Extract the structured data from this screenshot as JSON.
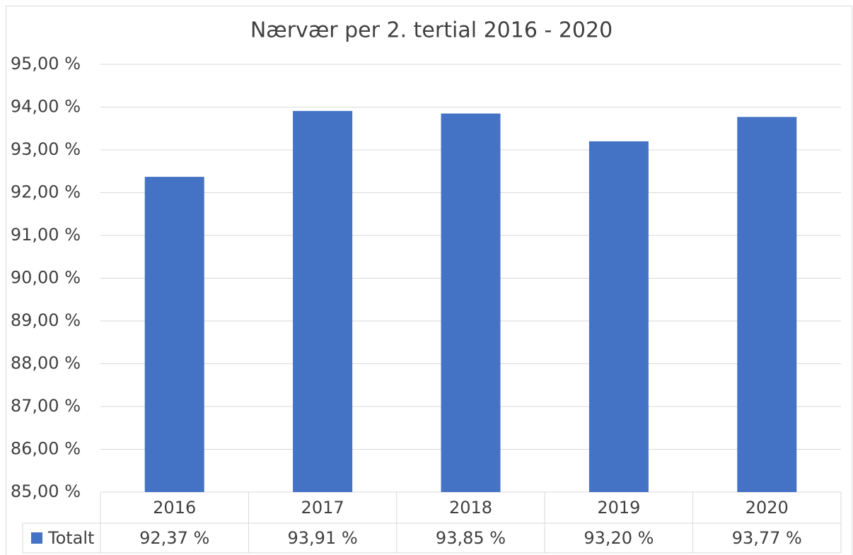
{
  "chart_data": {
    "type": "bar",
    "title": "Nærvær per 2. tertial 2016 - 2020",
    "categories": [
      "2016",
      "2017",
      "2018",
      "2019",
      "2020"
    ],
    "series": [
      {
        "name": "Totalt",
        "color": "#4472c4",
        "values": [
          92.37,
          93.91,
          93.85,
          93.2,
          93.77
        ],
        "value_labels": [
          "92,37 %",
          "93,91 %",
          "93,85 %",
          "93,20 %",
          "93,77 %"
        ]
      }
    ],
    "ylim": [
      85,
      95
    ],
    "yticks": [
      {
        "value": 85,
        "label": "85,00 %"
      },
      {
        "value": 86,
        "label": "86,00 %"
      },
      {
        "value": 87,
        "label": "87,00 %"
      },
      {
        "value": 88,
        "label": "88,00 %"
      },
      {
        "value": 89,
        "label": "89,00 %"
      },
      {
        "value": 90,
        "label": "90,00 %"
      },
      {
        "value": 91,
        "label": "91,00 %"
      },
      {
        "value": 92,
        "label": "92,00 %"
      },
      {
        "value": 93,
        "label": "93,00 %"
      },
      {
        "value": 94,
        "label": "94,00 %"
      },
      {
        "value": 95,
        "label": "95,00 %"
      }
    ],
    "grid": true
  }
}
